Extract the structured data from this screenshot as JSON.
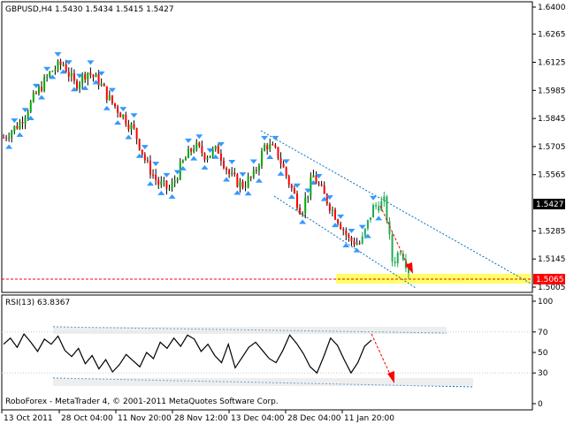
{
  "colors": {
    "background": "#ffffff",
    "bull_candle": "#00aa00",
    "bear_candle": "#ff0000",
    "wick": "#000000",
    "fractal": "#3399ff",
    "rsi_line": "#000000",
    "channel": "#0070c0",
    "support_zone": "#ffff55",
    "support_line": "#ff0000",
    "forecast_arrow": "#ff0000",
    "green_wave": "#22aa55"
  },
  "header": {
    "symbol_info": "GBPUSD,H4  1.5430 1.5434 1.5415 1.5427"
  },
  "rsi_header": {
    "label": "RSI(13) 63.8367"
  },
  "footer": {
    "copyright": "RoboForex - MetaTrader 4, © 2001-2011 MetaQuotes Software Corp."
  },
  "chart_data": [
    {
      "type": "candlestick",
      "symbol": "GBPUSD",
      "timeframe": "H4",
      "ohlc_last": {
        "open": 1.543,
        "high": 1.5434,
        "low": 1.5415,
        "close": 1.5427
      },
      "ylim": [
        1.5005,
        1.64
      ],
      "price_ticks": [
        "1.6400",
        "1.6265",
        "1.6125",
        "1.5985",
        "1.5845",
        "1.5705",
        "1.5565",
        "1.5285",
        "1.5145",
        "1.5005"
      ],
      "current_price_label": "1.5427",
      "support_level_label": "1.5065",
      "x_ticks": [
        "13 Oct 2011",
        "28 Oct 04:00",
        "11 Nov 20:00",
        "28 Nov 12:00",
        "13 Dec 04:00",
        "28 Dec 04:00",
        "11 Jan 20:00"
      ],
      "close_path": [
        [
          0,
          1.575
        ],
        [
          4,
          1.582
        ],
        [
          8,
          1.596
        ],
        [
          12,
          1.608
        ],
        [
          15,
          1.612
        ],
        [
          18,
          1.601
        ],
        [
          21,
          1.608
        ],
        [
          24,
          1.603
        ],
        [
          27,
          1.593
        ],
        [
          30,
          1.586
        ],
        [
          33,
          1.578
        ],
        [
          36,
          1.562
        ],
        [
          39,
          1.552
        ],
        [
          42,
          1.549
        ],
        [
          45,
          1.562
        ],
        [
          48,
          1.571
        ],
        [
          51,
          1.566
        ],
        [
          54,
          1.569
        ],
        [
          57,
          1.556
        ],
        [
          60,
          1.551
        ],
        [
          63,
          1.556
        ],
        [
          66,
          1.572
        ],
        [
          69,
          1.567
        ],
        [
          72,
          1.552
        ],
        [
          75,
          1.538
        ],
        [
          78,
          1.556
        ],
        [
          81,
          1.545
        ],
        [
          84,
          1.535
        ],
        [
          87,
          1.524
        ],
        [
          90,
          1.522
        ],
        [
          93,
          1.54
        ],
        [
          96,
          1.543
        ],
        [
          98,
          1.512
        ],
        [
          100,
          1.52
        ],
        [
          102,
          1.509
        ]
      ]
    },
    {
      "type": "line",
      "name": "RSI(13)",
      "value": 63.8367,
      "ylim": [
        0,
        100
      ],
      "y_ticks": [
        "100",
        "70",
        "50",
        "30",
        "0"
      ],
      "values": [
        58,
        64,
        55,
        68,
        60,
        51,
        63,
        58,
        66,
        52,
        46,
        54,
        39,
        47,
        34,
        43,
        31,
        38,
        48,
        42,
        36,
        50,
        44,
        60,
        54,
        64,
        56,
        67,
        63,
        51,
        58,
        47,
        40,
        58,
        35,
        45,
        55,
        60,
        52,
        44,
        40,
        52,
        67,
        59,
        49,
        36,
        30,
        46,
        64,
        57,
        43,
        30,
        40,
        56,
        62
      ]
    }
  ]
}
